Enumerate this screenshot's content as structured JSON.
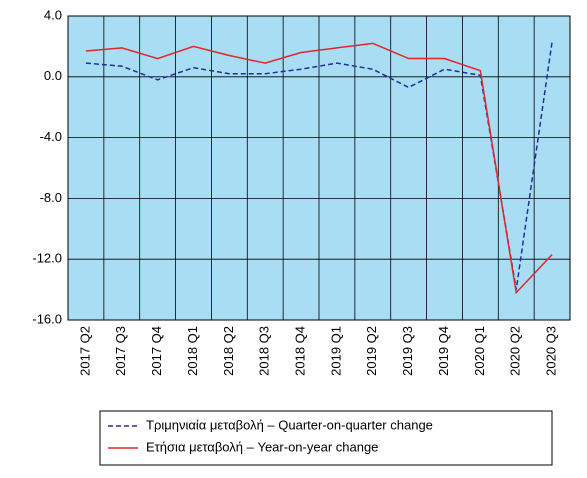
{
  "chart_data": {
    "type": "line",
    "categories": [
      "2017 Q2",
      "2017 Q3",
      "2017 Q4",
      "2018 Q1",
      "2018 Q2",
      "2018 Q3",
      "2018 Q4",
      "2019 Q1",
      "2019 Q2",
      "2019 Q3",
      "2019 Q4",
      "2020 Q1",
      "2020 Q2",
      "2020 Q3"
    ],
    "series": [
      {
        "name": "Τριμηνιαία μεταβολή – Quarter-on-quarter change",
        "color": "#1f2f9e",
        "dash": true,
        "values": [
          0.9,
          0.7,
          -0.2,
          0.6,
          0.2,
          0.2,
          0.5,
          0.9,
          0.5,
          -0.7,
          0.5,
          0.1,
          -14.0,
          2.3
        ]
      },
      {
        "name": "Ετήσια μεταβολή – Year-on-year change",
        "color": "#e3262a",
        "dash": false,
        "values": [
          1.7,
          1.9,
          1.2,
          2.0,
          1.4,
          0.9,
          1.6,
          1.9,
          2.2,
          1.2,
          1.2,
          0.4,
          -14.2,
          -11.7
        ]
      }
    ],
    "ylim": [
      -16,
      4
    ],
    "yticks": [
      {
        "value": 4,
        "label": "4.0"
      },
      {
        "value": 0,
        "label": "0.0"
      },
      {
        "value": -4,
        "label": "-4.0"
      },
      {
        "value": -8,
        "label": "-8.0"
      },
      {
        "value": -12,
        "label": "-12.0"
      },
      {
        "value": -16,
        "label": "-16.0"
      }
    ],
    "grid": true,
    "background": "#a9ddf4"
  }
}
